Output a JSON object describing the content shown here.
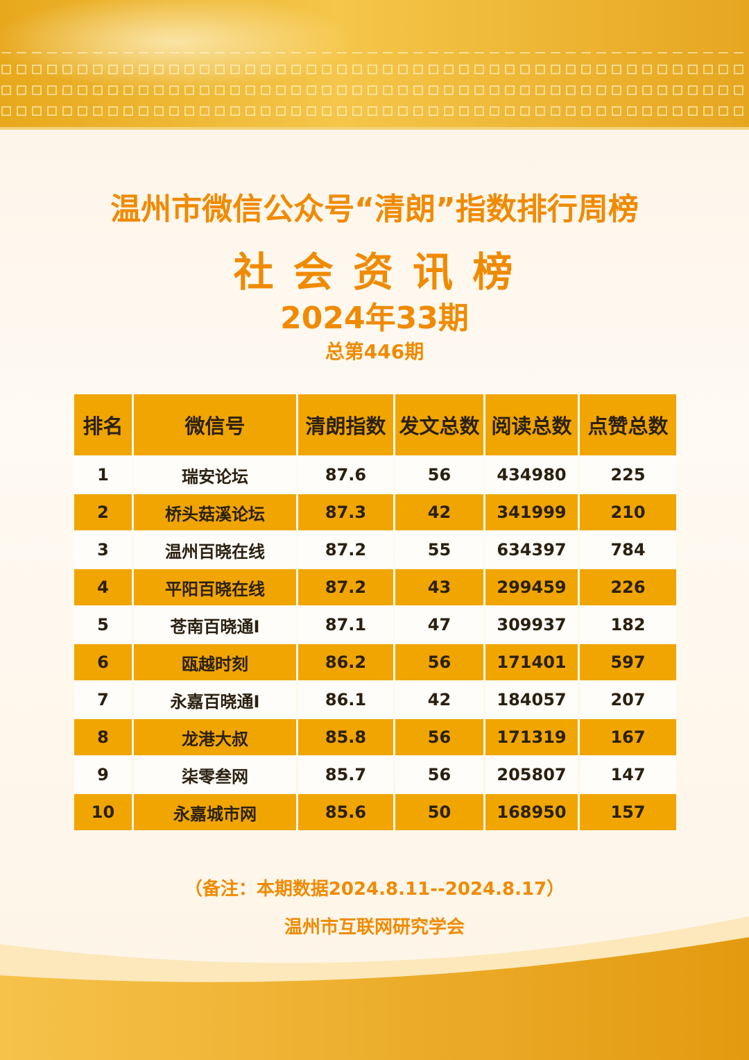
{
  "header": {
    "title": "温州市微信公众号“清朗”指数排行周榜",
    "subtitle": "社 会 资 讯 榜",
    "period": "2024年33期",
    "total": "总第446期"
  },
  "table": {
    "columns": [
      "排名",
      "微信号",
      "清朗指数",
      "发文总数",
      "阅读总数",
      "点赞总数"
    ],
    "rows": [
      [
        "1",
        "瑞安论坛",
        "87.6",
        "56",
        "434980",
        "225"
      ],
      [
        "2",
        "桥头菇溪论坛",
        "87.3",
        "42",
        "341999",
        "210"
      ],
      [
        "3",
        "温州百晓在线",
        "87.2",
        "55",
        "634397",
        "784"
      ],
      [
        "4",
        "平阳百晓在线",
        "87.2",
        "43",
        "299459",
        "226"
      ],
      [
        "5",
        "苍南百晓通I",
        "87.1",
        "47",
        "309937",
        "182"
      ],
      [
        "6",
        "瓯越时刻",
        "86.2",
        "56",
        "171401",
        "597"
      ],
      [
        "7",
        "永嘉百晓通I",
        "86.1",
        "42",
        "184057",
        "207"
      ],
      [
        "8",
        "龙港大叔",
        "85.8",
        "56",
        "171319",
        "167"
      ],
      [
        "9",
        "柒零叁网",
        "85.7",
        "56",
        "205807",
        "147"
      ],
      [
        "10",
        "永嘉城市网",
        "85.6",
        "50",
        "168950",
        "157"
      ]
    ]
  },
  "footer": {
    "note": "（备注：本期数据2024.8.11--2024.8.17）",
    "organization": "温州市互联网研究学会"
  }
}
